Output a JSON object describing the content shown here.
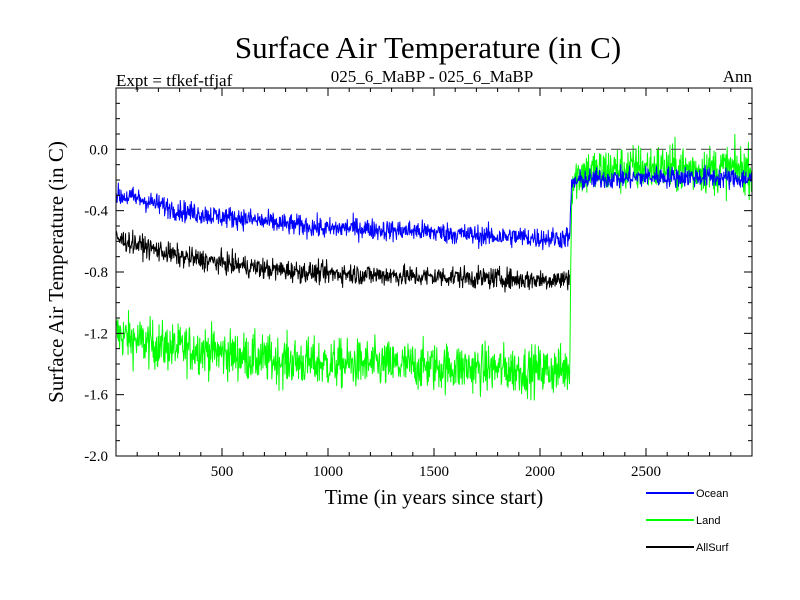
{
  "chart_data": {
    "type": "line",
    "title": "Surface Air Temperature (in C)",
    "subtitle_left": "Expt = tfkef-tfjaf",
    "subtitle_center": "025_6_MaBP - 025_6_MaBP",
    "subtitle_right": "Ann",
    "xlabel": "Time (in years since start)",
    "ylabel": "Surface Air Temperature (in C)",
    "xlim": [
      0,
      3000
    ],
    "ylim": [
      -2.0,
      0.4
    ],
    "xticks": [
      500,
      1000,
      1500,
      2000,
      2500
    ],
    "xtick_labels": [
      "500",
      "1000",
      "1500",
      "2000",
      "2500"
    ],
    "yticks": [
      -2.0,
      -1.6,
      -1.2,
      -0.8,
      -0.4,
      0.0
    ],
    "ytick_labels": [
      "-2.0",
      "-1.6",
      "-1.2",
      "-0.8",
      "-0.4",
      "0.0"
    ],
    "reference_line": {
      "y": 0.0,
      "style": "dashed"
    },
    "grid": false,
    "legend_position": "bottom-right, below plot",
    "series": [
      {
        "name": "Ocean",
        "color": "#0000ff",
        "x": [
          0,
          100,
          200,
          300,
          400,
          500,
          600,
          700,
          800,
          900,
          1000,
          1100,
          1200,
          1300,
          1400,
          1500,
          1600,
          1700,
          1800,
          1900,
          2000,
          2100,
          2140,
          2150,
          2200,
          2300,
          2400,
          2500,
          2600,
          2700,
          2800,
          2900,
          3000
        ],
        "y": [
          -0.3,
          -0.32,
          -0.36,
          -0.4,
          -0.42,
          -0.44,
          -0.45,
          -0.47,
          -0.49,
          -0.5,
          -0.52,
          -0.51,
          -0.52,
          -0.53,
          -0.53,
          -0.54,
          -0.55,
          -0.56,
          -0.57,
          -0.57,
          -0.58,
          -0.58,
          -0.57,
          -0.22,
          -0.2,
          -0.19,
          -0.19,
          -0.18,
          -0.18,
          -0.18,
          -0.18,
          -0.19,
          -0.19
        ]
      },
      {
        "name": "Land",
        "color": "#00ff00",
        "x": [
          0,
          100,
          200,
          300,
          400,
          500,
          600,
          700,
          800,
          900,
          1000,
          1100,
          1200,
          1300,
          1400,
          1500,
          1600,
          1700,
          1800,
          1900,
          2000,
          2100,
          2140,
          2150,
          2200,
          2300,
          2400,
          2500,
          2600,
          2700,
          2800,
          2900,
          3000
        ],
        "y": [
          -1.2,
          -1.25,
          -1.28,
          -1.3,
          -1.3,
          -1.33,
          -1.35,
          -1.37,
          -1.38,
          -1.39,
          -1.4,
          -1.4,
          -1.4,
          -1.41,
          -1.41,
          -1.42,
          -1.42,
          -1.43,
          -1.43,
          -1.44,
          -1.44,
          -1.44,
          -1.43,
          -0.2,
          -0.15,
          -0.14,
          -0.13,
          -0.12,
          -0.12,
          -0.13,
          -0.13,
          -0.13,
          -0.13
        ]
      },
      {
        "name": "AllSurf",
        "color": "#000000",
        "x": [
          0,
          100,
          200,
          300,
          400,
          500,
          600,
          700,
          800,
          900,
          1000,
          1100,
          1200,
          1300,
          1400,
          1500,
          1600,
          1700,
          1800,
          1900,
          2000,
          2100,
          2140
        ],
        "y": [
          -0.58,
          -0.62,
          -0.66,
          -0.7,
          -0.72,
          -0.74,
          -0.76,
          -0.78,
          -0.79,
          -0.8,
          -0.81,
          -0.81,
          -0.82,
          -0.82,
          -0.83,
          -0.83,
          -0.83,
          -0.84,
          -0.84,
          -0.85,
          -0.85,
          -0.85,
          -0.84
        ]
      }
    ],
    "noise_amplitude": {
      "Ocean": 0.07,
      "Land": 0.16,
      "AllSurf": 0.07
    }
  }
}
